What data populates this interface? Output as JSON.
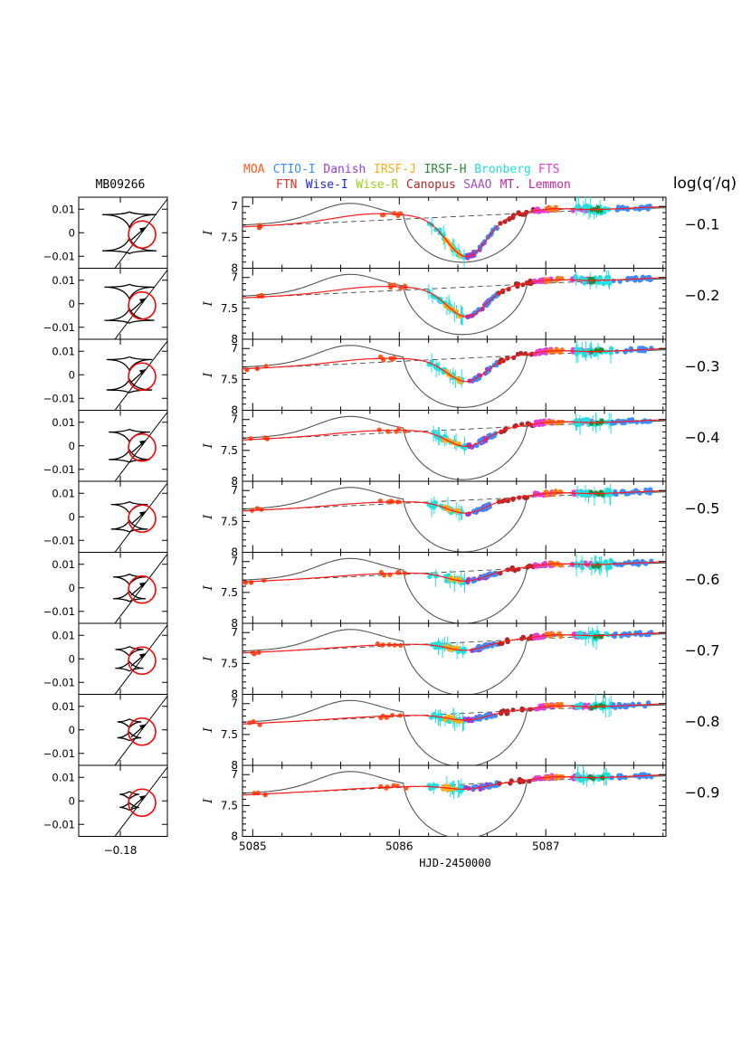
{
  "chart_data": {
    "type": "line",
    "event_label": "MB09266",
    "xlabel": "HJD-2450000",
    "xlim": [
      5084.93,
      5087.82
    ],
    "x_ticks": [
      5085,
      5086,
      5087
    ],
    "ylabel": "I",
    "ylim": [
      8.0,
      6.85
    ],
    "y_ticks": [
      7,
      7.5,
      8
    ],
    "right_label": "log(q′/q)",
    "log_q_ratio_values": [
      "−0.1",
      "−0.2",
      "−0.3",
      "−0.4",
      "−0.5",
      "−0.6",
      "−0.7",
      "−0.8",
      "−0.9"
    ],
    "caustic_axes": {
      "x_tick_label": "−0.18",
      "y_tick_labels": [
        "0.01",
        "0",
        "−0.01"
      ]
    },
    "legend_rows": [
      [
        {
          "name": "MOA",
          "color": "#ff5a1f"
        },
        {
          "name": "CTIO-I",
          "color": "#3c8cff"
        },
        {
          "name": "Danish",
          "color": "#9a3fd2"
        },
        {
          "name": "IRSF-J",
          "color": "#ffae19"
        },
        {
          "name": "IRSF-H",
          "color": "#2a8a3a"
        },
        {
          "name": "Bronberg",
          "color": "#20e0e0"
        },
        {
          "name": "FTS",
          "color": "#e53fd2"
        }
      ],
      [
        {
          "name": "FTN",
          "color": "#e0301e"
        },
        {
          "name": "Wise-I",
          "color": "#1c28e0"
        },
        {
          "name": "Wise-R",
          "color": "#9ad21c"
        },
        {
          "name": "Canopus",
          "color": "#b02828"
        },
        {
          "name": "SAAO",
          "color": "#a050c8"
        },
        {
          "name": "MT. Lemmon",
          "color": "#c0289a"
        }
      ]
    ],
    "baseline_dashed": {
      "x": [
        5084.93,
        5087.82
      ],
      "y": [
        7.33,
        7.0
      ]
    },
    "panels": [
      {
        "log_q_ratio": -0.1,
        "red_min_mag": 7.78,
        "gray_peak_mag": 6.95,
        "gray_min_mag": 7.85
      },
      {
        "log_q_ratio": -0.2,
        "red_min_mag": 7.6,
        "gray_peak_mag": 6.95,
        "gray_min_mag": 7.87
      },
      {
        "log_q_ratio": -0.3,
        "red_min_mag": 7.5,
        "gray_peak_mag": 6.95,
        "gray_min_mag": 7.9
      },
      {
        "log_q_ratio": -0.4,
        "red_min_mag": 7.4,
        "gray_peak_mag": 6.95,
        "gray_min_mag": 7.92
      },
      {
        "log_q_ratio": -0.5,
        "red_min_mag": 7.33,
        "gray_peak_mag": 6.95,
        "gray_min_mag": 7.94
      },
      {
        "log_q_ratio": -0.6,
        "red_min_mag": 7.28,
        "gray_peak_mag": 6.95,
        "gray_min_mag": 7.95
      },
      {
        "log_q_ratio": -0.7,
        "red_min_mag": 7.25,
        "gray_peak_mag": 6.95,
        "gray_min_mag": 7.96
      },
      {
        "log_q_ratio": -0.8,
        "red_min_mag": 7.23,
        "gray_peak_mag": 6.95,
        "gray_min_mag": 7.97
      },
      {
        "log_q_ratio": -0.9,
        "red_min_mag": 7.2,
        "gray_peak_mag": 6.95,
        "gray_min_mag": 7.98
      }
    ],
    "colors": {
      "model_fit": "#ff1a1a",
      "model_alt": "#555555",
      "source_circle": "#ff0000",
      "axes": "#000000"
    }
  }
}
